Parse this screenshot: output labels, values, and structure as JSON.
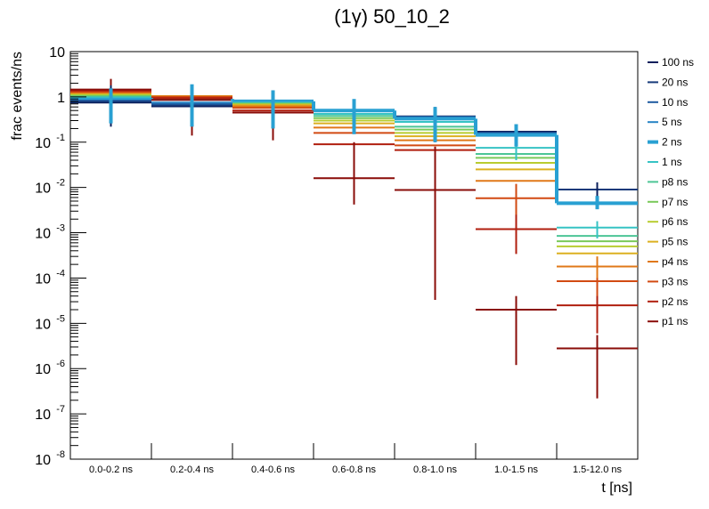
{
  "chart_data": {
    "type": "step",
    "title": "(1γ) 50_10_2",
    "xlabel": "t [ns]",
    "ylabel": "frac events/ns",
    "yscale": "log",
    "ylim": [
      1e-08,
      10
    ],
    "categories": [
      "0.0-0.2 ns",
      "0.2-0.4 ns",
      "0.4-0.6 ns",
      "0.6-0.8 ns",
      "0.8-1.0 ns",
      "1.0-1.5 ns",
      "1.5-12.0 ns"
    ],
    "y_ticks": [
      {
        "exp": null,
        "label": "10"
      },
      {
        "exp": null,
        "label": "1"
      },
      {
        "exp": "-1",
        "label": "10"
      },
      {
        "exp": "-2",
        "label": "10"
      },
      {
        "exp": "-3",
        "label": "10"
      },
      {
        "exp": "-4",
        "label": "10"
      },
      {
        "exp": "-5",
        "label": "10"
      },
      {
        "exp": "-6",
        "label": "10"
      },
      {
        "exp": "-7",
        "label": "10"
      },
      {
        "exp": "-8",
        "label": "10"
      }
    ],
    "series": [
      {
        "name": "100 ns",
        "color": "#0a1f5c",
        "values": [
          0.75,
          0.62,
          0.6,
          0.5,
          0.37,
          0.17,
          0.009
        ]
      },
      {
        "name": "20 ns",
        "color": "#173a7a",
        "values": [
          0.8,
          0.66,
          0.62,
          0.5,
          0.37,
          0.16,
          0.009
        ]
      },
      {
        "name": "10 ns",
        "color": "#1e5aa0",
        "values": [
          0.85,
          0.7,
          0.64,
          0.5,
          0.36,
          0.16,
          0.0046
        ]
      },
      {
        "name": "5 ns",
        "color": "#2783c4",
        "values": [
          0.9,
          0.75,
          0.66,
          0.5,
          0.34,
          0.15,
          0.0045
        ]
      },
      {
        "name": "2 ns",
        "color": "#29a0d2",
        "values": [
          0.95,
          0.9,
          0.8,
          0.5,
          0.33,
          0.145,
          0.0045
        ]
      },
      {
        "name": "1 ns",
        "color": "#36c3c4",
        "values": [
          1.0,
          0.93,
          0.74,
          0.42,
          0.28,
          0.075,
          0.0013
        ]
      },
      {
        "name": "p8 ns",
        "color": "#4cc596",
        "values": [
          1.05,
          0.97,
          0.72,
          0.38,
          0.22,
          0.055,
          0.00085
        ]
      },
      {
        "name": "p7 ns",
        "color": "#7ac95a",
        "values": [
          1.1,
          1.0,
          0.7,
          0.34,
          0.19,
          0.045,
          0.00065
        ]
      },
      {
        "name": "p6 ns",
        "color": "#b8cc30",
        "values": [
          1.15,
          1.02,
          0.68,
          0.3,
          0.16,
          0.035,
          0.0005
        ]
      },
      {
        "name": "p5 ns",
        "color": "#dcb020",
        "values": [
          1.2,
          1.04,
          0.66,
          0.26,
          0.135,
          0.025,
          0.00035
        ]
      },
      {
        "name": "p4 ns",
        "color": "#e07818",
        "values": [
          1.25,
          1.03,
          0.62,
          0.21,
          0.11,
          0.014,
          0.00018
        ]
      },
      {
        "name": "p3 ns",
        "color": "#d24a12",
        "values": [
          1.3,
          1.0,
          0.57,
          0.16,
          0.085,
          0.0058,
          8.5e-05
        ]
      },
      {
        "name": "p2 ns",
        "color": "#b01e0e",
        "values": [
          1.38,
          0.94,
          0.5,
          0.09,
          0.067,
          0.0012,
          2.5e-05
        ]
      },
      {
        "name": "p1 ns",
        "color": "#8a0c08",
        "values": [
          1.45,
          0.86,
          0.45,
          0.016,
          0.0088,
          2e-05,
          2.8e-06
        ]
      }
    ],
    "error_bars": [
      {
        "series": "p1 ns",
        "bin": 0,
        "low": 1.2,
        "high": 2.5
      },
      {
        "series": "p1 ns",
        "bin": 1,
        "low": 0.14,
        "high": 1.6
      },
      {
        "series": "p1 ns",
        "bin": 2,
        "low": 0.11,
        "high": 0.9
      },
      {
        "series": "p1 ns",
        "bin": 3,
        "low": 0.0042,
        "high": 0.1
      },
      {
        "series": "p1 ns",
        "bin": 4,
        "low": 3.3e-05,
        "high": 0.08
      },
      {
        "series": "p1 ns",
        "bin": 5,
        "low": 1.2e-06,
        "high": 4e-05
      },
      {
        "series": "p1 ns",
        "bin": 6,
        "low": 2.2e-07,
        "high": 5.5e-06
      },
      {
        "series": "p2 ns",
        "bin": 5,
        "low": 0.00034,
        "high": 0.003
      },
      {
        "series": "p2 ns",
        "bin": 6,
        "low": 6e-06,
        "high": 6e-05
      },
      {
        "series": "p3 ns",
        "bin": 5,
        "low": 0.0025,
        "high": 0.012
      },
      {
        "series": "p3 ns",
        "bin": 6,
        "low": 4e-05,
        "high": 0.0002
      },
      {
        "series": "p4 ns",
        "bin": 6,
        "low": 0.0001,
        "high": 0.0003
      },
      {
        "series": "1 ns",
        "bin": 5,
        "low": 0.04,
        "high": 0.12
      },
      {
        "series": "1 ns",
        "bin": 6,
        "low": 0.00075,
        "high": 0.0018
      },
      {
        "series": "100 ns",
        "bin": 0,
        "low": 0.22,
        "high": 1.8
      },
      {
        "series": "100 ns",
        "bin": 4,
        "low": 0.1,
        "high": 0.6
      },
      {
        "series": "100 ns",
        "bin": 6,
        "low": 0.0045,
        "high": 0.013
      },
      {
        "series": "2 ns",
        "bin": 0,
        "low": 0.26,
        "high": 1.55
      },
      {
        "series": "2 ns",
        "bin": 1,
        "low": 0.22,
        "high": 1.9
      },
      {
        "series": "2 ns",
        "bin": 2,
        "low": 0.2,
        "high": 1.4
      },
      {
        "series": "2 ns",
        "bin": 3,
        "low": 0.15,
        "high": 0.9
      },
      {
        "series": "2 ns",
        "bin": 4,
        "low": 0.1,
        "high": 0.6
      },
      {
        "series": "2 ns",
        "bin": 5,
        "low": 0.08,
        "high": 0.25
      },
      {
        "series": "2 ns",
        "bin": 6,
        "low": 0.0033,
        "high": 0.0065
      }
    ]
  }
}
